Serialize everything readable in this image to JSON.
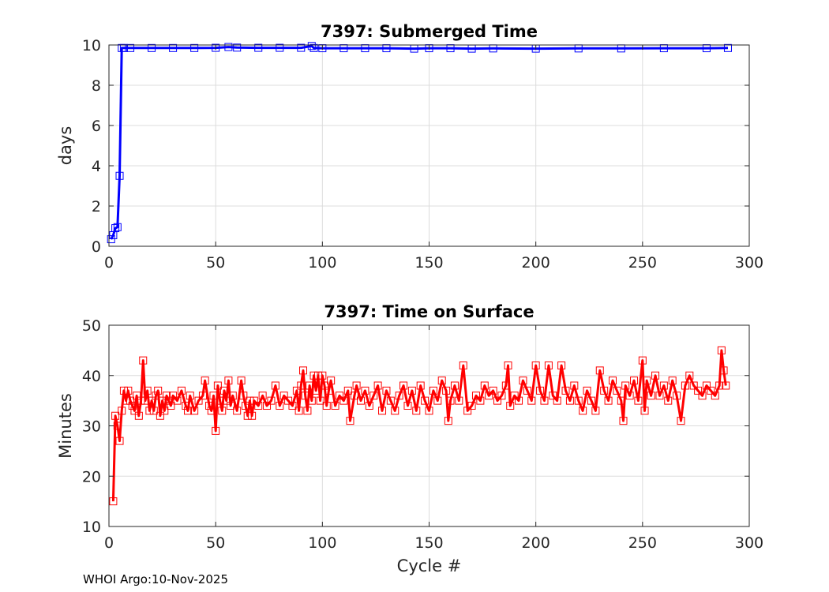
{
  "footer": "WHOI Argo:10-Nov-2025",
  "chart_data": [
    {
      "type": "line",
      "title": "7397: Submerged Time",
      "xlabel": "",
      "ylabel": "days",
      "xlim": [
        0,
        300
      ],
      "ylim": [
        0,
        10
      ],
      "xticks": [
        0,
        50,
        100,
        150,
        200,
        250,
        300
      ],
      "yticks": [
        0,
        2,
        4,
        6,
        8,
        10
      ],
      "grid": true,
      "marker": "square",
      "color": "#0000ff",
      "series": [
        {
          "points": [
            [
              1,
              0.35
            ],
            [
              2,
              0.55
            ],
            [
              3,
              0.9
            ],
            [
              4,
              0.95
            ],
            [
              5,
              3.5
            ],
            [
              6,
              9.85
            ],
            [
              7,
              9.85
            ],
            [
              10,
              9.85
            ],
            [
              20,
              9.85
            ],
            [
              30,
              9.85
            ],
            [
              40,
              9.85
            ],
            [
              50,
              9.86
            ],
            [
              56,
              9.9
            ],
            [
              60,
              9.87
            ],
            [
              70,
              9.86
            ],
            [
              80,
              9.86
            ],
            [
              90,
              9.86
            ],
            [
              95,
              9.95
            ],
            [
              96,
              9.85
            ],
            [
              100,
              9.84
            ],
            [
              110,
              9.84
            ],
            [
              120,
              9.84
            ],
            [
              130,
              9.84
            ],
            [
              143,
              9.82
            ],
            [
              150,
              9.84
            ],
            [
              160,
              9.84
            ],
            [
              170,
              9.82
            ],
            [
              180,
              9.83
            ],
            [
              200,
              9.82
            ],
            [
              220,
              9.83
            ],
            [
              240,
              9.83
            ],
            [
              260,
              9.84
            ],
            [
              280,
              9.84
            ],
            [
              290,
              9.85
            ]
          ]
        }
      ]
    },
    {
      "type": "line",
      "title": "7397: Time on Surface",
      "xlabel": "Cycle #",
      "ylabel": "Minutes",
      "xlim": [
        0,
        300
      ],
      "ylim": [
        10,
        50
      ],
      "xticks": [
        0,
        50,
        100,
        150,
        200,
        250,
        300
      ],
      "yticks": [
        10,
        20,
        30,
        40,
        50
      ],
      "grid": true,
      "marker": "square",
      "color": "#ff0000",
      "series": [
        {
          "points": [
            [
              2,
              15
            ],
            [
              3,
              32
            ],
            [
              4,
              30
            ],
            [
              5,
              27
            ],
            [
              6,
              33
            ],
            [
              7,
              37
            ],
            [
              8,
              35
            ],
            [
              9,
              37
            ],
            [
              10,
              35
            ],
            [
              11,
              34
            ],
            [
              12,
              33
            ],
            [
              13,
              36
            ],
            [
              14,
              32
            ],
            [
              15,
              35
            ],
            [
              16,
              43
            ],
            [
              17,
              35
            ],
            [
              18,
              37
            ],
            [
              19,
              33
            ],
            [
              20,
              35
            ],
            [
              21,
              33
            ],
            [
              22,
              36
            ],
            [
              23,
              37
            ],
            [
              24,
              32
            ],
            [
              25,
              35
            ],
            [
              26,
              33
            ],
            [
              27,
              36
            ],
            [
              28,
              35
            ],
            [
              29,
              34
            ],
            [
              30,
              36
            ],
            [
              32,
              35
            ],
            [
              34,
              37
            ],
            [
              36,
              34
            ],
            [
              37,
              33
            ],
            [
              38,
              36
            ],
            [
              40,
              33
            ],
            [
              42,
              35
            ],
            [
              44,
              36
            ],
            [
              45,
              39
            ],
            [
              47,
              34
            ],
            [
              48,
              33
            ],
            [
              49,
              36
            ],
            [
              50,
              29
            ],
            [
              51,
              38
            ],
            [
              52,
              35
            ],
            [
              53,
              33
            ],
            [
              54,
              37
            ],
            [
              55,
              35
            ],
            [
              56,
              39
            ],
            [
              57,
              34
            ],
            [
              58,
              36
            ],
            [
              60,
              33
            ],
            [
              62,
              39
            ],
            [
              63,
              36
            ],
            [
              64,
              34
            ],
            [
              65,
              32
            ],
            [
              66,
              35
            ],
            [
              67,
              32
            ],
            [
              68,
              35
            ],
            [
              70,
              34
            ],
            [
              72,
              36
            ],
            [
              74,
              34
            ],
            [
              76,
              35
            ],
            [
              78,
              38
            ],
            [
              80,
              34
            ],
            [
              82,
              36
            ],
            [
              84,
              35
            ],
            [
              86,
              34
            ],
            [
              88,
              37
            ],
            [
              89,
              33
            ],
            [
              90,
              38
            ],
            [
              91,
              41
            ],
            [
              92,
              36
            ],
            [
              93,
              33
            ],
            [
              94,
              38
            ],
            [
              95,
              35
            ],
            [
              96,
              40
            ],
            [
              97,
              37
            ],
            [
              98,
              40
            ],
            [
              99,
              35
            ],
            [
              100,
              40
            ],
            [
              101,
              38
            ],
            [
              102,
              34
            ],
            [
              103,
              37
            ],
            [
              104,
              39
            ],
            [
              106,
              34
            ],
            [
              108,
              36
            ],
            [
              110,
              35
            ],
            [
              112,
              37
            ],
            [
              113,
              31
            ],
            [
              115,
              36
            ],
            [
              116,
              38
            ],
            [
              118,
              35
            ],
            [
              120,
              37
            ],
            [
              122,
              34
            ],
            [
              124,
              36
            ],
            [
              126,
              38
            ],
            [
              128,
              33
            ],
            [
              130,
              37
            ],
            [
              132,
              35
            ],
            [
              134,
              33
            ],
            [
              136,
              36
            ],
            [
              138,
              38
            ],
            [
              140,
              34
            ],
            [
              142,
              37
            ],
            [
              144,
              33
            ],
            [
              146,
              38
            ],
            [
              148,
              35
            ],
            [
              150,
              33
            ],
            [
              152,
              37
            ],
            [
              154,
              35
            ],
            [
              156,
              39
            ],
            [
              158,
              37
            ],
            [
              159,
              31
            ],
            [
              160,
              35
            ],
            [
              162,
              38
            ],
            [
              164,
              35
            ],
            [
              166,
              42
            ],
            [
              168,
              33
            ],
            [
              170,
              34
            ],
            [
              172,
              36
            ],
            [
              174,
              35
            ],
            [
              176,
              38
            ],
            [
              178,
              36
            ],
            [
              180,
              37
            ],
            [
              182,
              35
            ],
            [
              184,
              36
            ],
            [
              186,
              38
            ],
            [
              187,
              42
            ],
            [
              188,
              34
            ],
            [
              190,
              36
            ],
            [
              192,
              35
            ],
            [
              194,
              39
            ],
            [
              196,
              37
            ],
            [
              198,
              35
            ],
            [
              200,
              42
            ],
            [
              202,
              37
            ],
            [
              204,
              35
            ],
            [
              206,
              42
            ],
            [
              208,
              36
            ],
            [
              210,
              35
            ],
            [
              212,
              42
            ],
            [
              214,
              37
            ],
            [
              216,
              35
            ],
            [
              218,
              38
            ],
            [
              220,
              35
            ],
            [
              222,
              33
            ],
            [
              224,
              37
            ],
            [
              226,
              35
            ],
            [
              228,
              33
            ],
            [
              230,
              41
            ],
            [
              232,
              37
            ],
            [
              234,
              35
            ],
            [
              236,
              39
            ],
            [
              238,
              37
            ],
            [
              240,
              35
            ],
            [
              241,
              31
            ],
            [
              242,
              38
            ],
            [
              244,
              36
            ],
            [
              246,
              39
            ],
            [
              248,
              35
            ],
            [
              250,
              43
            ],
            [
              251,
              33
            ],
            [
              252,
              39
            ],
            [
              254,
              36
            ],
            [
              256,
              40
            ],
            [
              258,
              36
            ],
            [
              260,
              38
            ],
            [
              262,
              35
            ],
            [
              264,
              39
            ],
            [
              266,
              36
            ],
            [
              268,
              31
            ],
            [
              270,
              38
            ],
            [
              272,
              40
            ],
            [
              274,
              38
            ],
            [
              276,
              37
            ],
            [
              278,
              36
            ],
            [
              280,
              38
            ],
            [
              282,
              37
            ],
            [
              284,
              36
            ],
            [
              286,
              38
            ],
            [
              287,
              45
            ],
            [
              288,
              41
            ],
            [
              289,
              38
            ]
          ]
        }
      ]
    }
  ]
}
